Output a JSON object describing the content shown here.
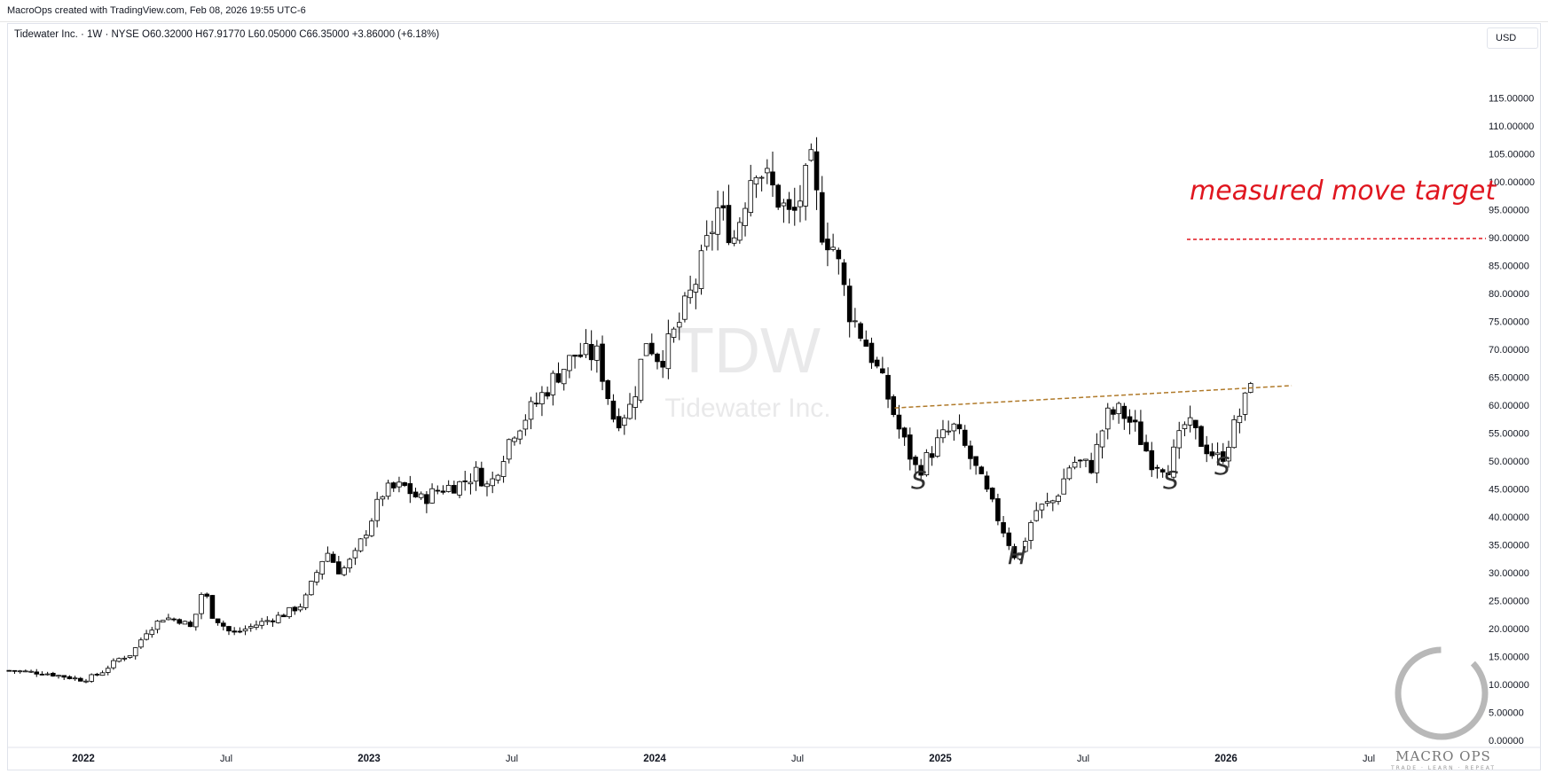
{
  "header": {
    "credit": "MacroOps created with TradingView.com, Feb 08, 2026 19:55 UTC-6"
  },
  "legend": {
    "symbol_line": "Tidewater Inc. · 1W · NYSE",
    "open": "O60.32000",
    "high": "H67.91770",
    "low": "L60.05000",
    "close": "C66.35000",
    "change": "+3.86000 (+6.18%)"
  },
  "currency": "USD",
  "watermark": {
    "ticker": "TDW",
    "name": "Tidewater Inc."
  },
  "logo": {
    "text": "MACRO OPS",
    "sub": "TRADE · LEARN · REPEAT"
  },
  "annotations": {
    "target_label": "measured move target",
    "left_shoulder": "S",
    "head": "H",
    "right_shoulder_1": "S",
    "right_shoulder_2": "S"
  },
  "colors": {
    "bull_body": "#ffffff",
    "bear_body": "#000000",
    "wick": "#000000",
    "neckline": "#b07a2a",
    "target": "#e0161f",
    "axis_text": "#131722"
  },
  "chart_data": {
    "type": "candlestick",
    "interval": "1W",
    "y_axis": {
      "min": 0,
      "max": 115,
      "ticks": [
        "115.00000",
        "110.00000",
        "105.00000",
        "100.00000",
        "95.00000",
        "90.00000",
        "85.00000",
        "80.00000",
        "75.00000",
        "70.00000",
        "65.00000",
        "60.00000",
        "55.00000",
        "50.00000",
        "45.00000",
        "40.00000",
        "35.00000",
        "30.00000",
        "25.00000",
        "20.00000",
        "15.00000",
        "10.00000",
        "5.00000",
        "0.00000"
      ]
    },
    "x_axis": {
      "labels": [
        {
          "text": "2022",
          "t": 2022.0,
          "bold": true
        },
        {
          "text": "Jul",
          "t": 2022.5,
          "bold": false
        },
        {
          "text": "2023",
          "t": 2023.0,
          "bold": true
        },
        {
          "text": "Jul",
          "t": 2023.5,
          "bold": false
        },
        {
          "text": "2024",
          "t": 2024.0,
          "bold": true
        },
        {
          "text": "Jul",
          "t": 2024.5,
          "bold": false
        },
        {
          "text": "2025",
          "t": 2025.0,
          "bold": true
        },
        {
          "text": "Jul",
          "t": 2025.5,
          "bold": false
        },
        {
          "text": "2026",
          "t": 2026.0,
          "bold": true
        },
        {
          "text": "Jul",
          "t": 2026.5,
          "bold": false
        }
      ]
    },
    "price_anchors": [
      [
        2021.74,
        12.5
      ],
      [
        2021.87,
        12.0
      ],
      [
        2022.0,
        10.8
      ],
      [
        2022.06,
        12.0
      ],
      [
        2022.12,
        14.5
      ],
      [
        2022.17,
        15.5
      ],
      [
        2022.22,
        19.5
      ],
      [
        2022.28,
        22.0
      ],
      [
        2022.34,
        21.5
      ],
      [
        2022.38,
        20.0
      ],
      [
        2022.42,
        27.5
      ],
      [
        2022.45,
        22.5
      ],
      [
        2022.52,
        19.0
      ],
      [
        2022.62,
        21.0
      ],
      [
        2022.7,
        22.5
      ],
      [
        2022.77,
        24.5
      ],
      [
        2022.85,
        34.0
      ],
      [
        2022.9,
        30.0
      ],
      [
        2022.95,
        33.0
      ],
      [
        2023.05,
        44.5
      ],
      [
        2023.12,
        45.5
      ],
      [
        2023.18,
        43.0
      ],
      [
        2023.25,
        45.0
      ],
      [
        2023.32,
        46.0
      ],
      [
        2023.38,
        48.0
      ],
      [
        2023.42,
        45.0
      ],
      [
        2023.5,
        55.0
      ],
      [
        2023.58,
        60.0
      ],
      [
        2023.65,
        65.0
      ],
      [
        2023.72,
        69.0
      ],
      [
        2023.8,
        69.0
      ],
      [
        2023.86,
        57.0
      ],
      [
        2023.92,
        60.0
      ],
      [
        2023.97,
        72.0
      ],
      [
        2024.02,
        68.0
      ],
      [
        2024.08,
        74.0
      ],
      [
        2024.15,
        83.0
      ],
      [
        2024.22,
        95.0
      ],
      [
        2024.28,
        90.0
      ],
      [
        2024.35,
        104.0
      ],
      [
        2024.42,
        98.0
      ],
      [
        2024.48,
        93.0
      ],
      [
        2024.55,
        103.0
      ],
      [
        2024.58,
        92.0
      ],
      [
        2024.63,
        88.0
      ],
      [
        2024.68,
        77.0
      ],
      [
        2024.75,
        70.0
      ],
      [
        2024.82,
        61.0
      ],
      [
        2024.86,
        55.0
      ],
      [
        2024.92,
        48.0
      ],
      [
        2025.0,
        54.0
      ],
      [
        2025.05,
        56.0
      ],
      [
        2025.12,
        49.0
      ],
      [
        2025.2,
        40.0
      ],
      [
        2025.27,
        32.0
      ],
      [
        2025.33,
        41.0
      ],
      [
        2025.4,
        43.0
      ],
      [
        2025.46,
        50.0
      ],
      [
        2025.53,
        49.0
      ],
      [
        2025.58,
        58.0
      ],
      [
        2025.63,
        59.0
      ],
      [
        2025.68,
        56.0
      ],
      [
        2025.74,
        50.0
      ],
      [
        2025.8,
        49.0
      ],
      [
        2025.86,
        57.0
      ],
      [
        2025.92,
        53.0
      ],
      [
        2025.98,
        50.0
      ],
      [
        2026.02,
        55.0
      ],
      [
        2026.07,
        61.0
      ],
      [
        2026.1,
        66.35
      ]
    ],
    "neckline": {
      "from": [
        2024.84,
        59.5
      ],
      "to": [
        2026.23,
        63.5
      ]
    },
    "target_level": 90.0
  }
}
